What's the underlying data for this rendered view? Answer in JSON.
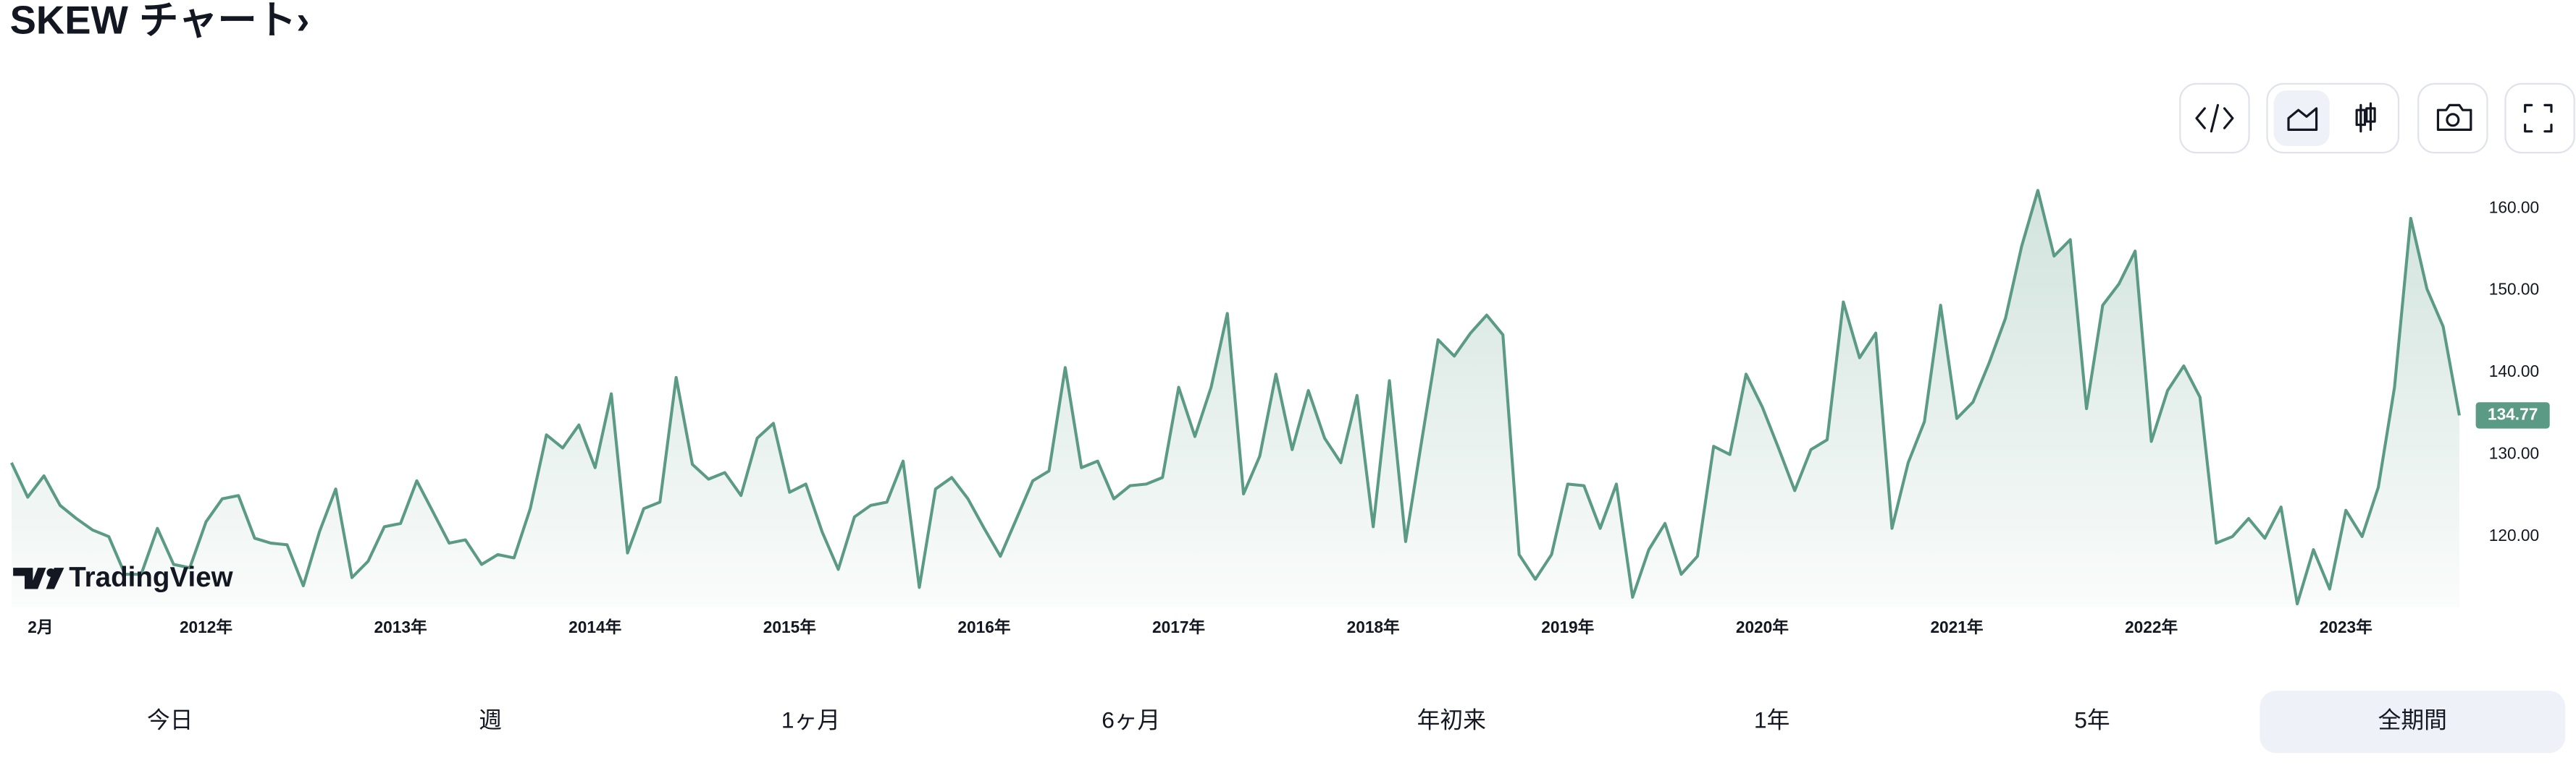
{
  "title": "SKEW チャート›",
  "logo": "TradingView",
  "range_buttons": [
    {
      "label": "今日"
    },
    {
      "label": "週"
    },
    {
      "label": "1ヶ月"
    },
    {
      "label": "6ヶ月"
    },
    {
      "label": "年初来"
    },
    {
      "label": "1年"
    },
    {
      "label": "5年"
    },
    {
      "label": "全期間",
      "active": true
    }
  ],
  "chart_data": {
    "type": "area",
    "color": "#5b9a85",
    "x": [
      "2011-01",
      "2011-02",
      "2011-03",
      "2011-04",
      "2011-05",
      "2011-06",
      "2011-07",
      "2011-08",
      "2011-09",
      "2011-10",
      "2011-11",
      "2011-12",
      "2012-01",
      "2012-02",
      "2012-03",
      "2012-04",
      "2012-05",
      "2012-06",
      "2012-07",
      "2012-08",
      "2012-09",
      "2012-10",
      "2012-11",
      "2012-12",
      "2013-01",
      "2013-02",
      "2013-03",
      "2013-04",
      "2013-05",
      "2013-06",
      "2013-07",
      "2013-08",
      "2013-09",
      "2013-10",
      "2013-11",
      "2013-12",
      "2014-01",
      "2014-02",
      "2014-03",
      "2014-04",
      "2014-05",
      "2014-06",
      "2014-07",
      "2014-08",
      "2014-09",
      "2014-10",
      "2014-11",
      "2014-12",
      "2015-01",
      "2015-02",
      "2015-03",
      "2015-04",
      "2015-05",
      "2015-06",
      "2015-07",
      "2015-08",
      "2015-09",
      "2015-10",
      "2015-11",
      "2015-12",
      "2016-01",
      "2016-02",
      "2016-03",
      "2016-04",
      "2016-05",
      "2016-06",
      "2016-07",
      "2016-08",
      "2016-09",
      "2016-10",
      "2016-11",
      "2016-12",
      "2017-01",
      "2017-02",
      "2017-03",
      "2017-04",
      "2017-05",
      "2017-06",
      "2017-07",
      "2017-08",
      "2017-09",
      "2017-10",
      "2017-11",
      "2017-12",
      "2018-01",
      "2018-02",
      "2018-03",
      "2018-04",
      "2018-05",
      "2018-06",
      "2018-07",
      "2018-08",
      "2018-09",
      "2018-10",
      "2018-11",
      "2018-12",
      "2019-01",
      "2019-02",
      "2019-03",
      "2019-04",
      "2019-05",
      "2019-06",
      "2019-07",
      "2019-08",
      "2019-09",
      "2019-10",
      "2019-11",
      "2019-12",
      "2020-01",
      "2020-02",
      "2020-03",
      "2020-04",
      "2020-05",
      "2020-06",
      "2020-07",
      "2020-08",
      "2020-09",
      "2020-10",
      "2020-11",
      "2020-12",
      "2021-01",
      "2021-02",
      "2021-03",
      "2021-04",
      "2021-05",
      "2021-06",
      "2021-07",
      "2021-08",
      "2021-09",
      "2021-10",
      "2021-11",
      "2021-12",
      "2022-01",
      "2022-02",
      "2022-03",
      "2022-04",
      "2022-05",
      "2022-06",
      "2022-07",
      "2022-08",
      "2022-09",
      "2022-10",
      "2022-11",
      "2022-12",
      "2023-01",
      "2023-02",
      "2023-03",
      "2023-04",
      "2023-05",
      "2023-06",
      "2023-07",
      "2023-08"
    ],
    "values": [
      129.0,
      124.8,
      127.4,
      123.8,
      122.2,
      120.8,
      120.0,
      115.4,
      115.4,
      121.0,
      116.6,
      116.2,
      121.8,
      124.6,
      125.0,
      119.8,
      119.2,
      119.0,
      114.0,
      120.6,
      125.8,
      115.0,
      117.0,
      121.2,
      121.6,
      126.8,
      123.0,
      119.2,
      119.6,
      116.6,
      117.8,
      117.4,
      123.4,
      132.4,
      130.8,
      133.6,
      128.4,
      137.4,
      118.0,
      123.4,
      124.2,
      139.4,
      128.8,
      127.0,
      127.8,
      125.0,
      132.0,
      133.8,
      125.4,
      126.4,
      120.6,
      116.0,
      122.4,
      123.8,
      124.2,
      129.2,
      113.8,
      125.8,
      127.2,
      124.6,
      121.0,
      117.6,
      122.2,
      126.8,
      128.0,
      140.6,
      128.4,
      129.2,
      124.6,
      126.2,
      126.4,
      127.2,
      138.2,
      132.2,
      138.2,
      147.2,
      125.2,
      129.8,
      139.8,
      130.6,
      137.8,
      132.0,
      129.0,
      137.2,
      121.2,
      139.0,
      119.4,
      131.8,
      144.0,
      142.0,
      144.8,
      147.0,
      144.6,
      117.8,
      114.8,
      117.8,
      126.4,
      126.2,
      121.0,
      126.4,
      112.6,
      118.4,
      121.6,
      115.4,
      117.6,
      131.0,
      130.0,
      139.8,
      135.8,
      130.8,
      125.6,
      130.6,
      131.8,
      148.6,
      141.8,
      144.8,
      121.0,
      129.0,
      134.0,
      148.2,
      134.4,
      136.4,
      141.2,
      146.6,
      155.4,
      162.2,
      154.2,
      156.2,
      135.6,
      148.2,
      150.8,
      154.8,
      131.6,
      137.8,
      140.8,
      137.0,
      119.2,
      120.0,
      122.2,
      119.8,
      123.6,
      111.8,
      118.4,
      113.6,
      123.2,
      120.0,
      126.0,
      138.2,
      158.8,
      150.2,
      145.6,
      134.77
    ],
    "xlim": [
      "2011-01",
      "2023-08"
    ],
    "xticks": [
      {
        "value": "2011-02",
        "label": "2月"
      },
      {
        "value": "2012-01",
        "label": "2012年"
      },
      {
        "value": "2013-01",
        "label": "2013年"
      },
      {
        "value": "2014-01",
        "label": "2014年"
      },
      {
        "value": "2015-01",
        "label": "2015年"
      },
      {
        "value": "2016-01",
        "label": "2016年"
      },
      {
        "value": "2017-01",
        "label": "2017年"
      },
      {
        "value": "2018-01",
        "label": "2018年"
      },
      {
        "value": "2019-01",
        "label": "2019年"
      },
      {
        "value": "2020-01",
        "label": "2020年"
      },
      {
        "value": "2021-01",
        "label": "2021年"
      },
      {
        "value": "2022-01",
        "label": "2022年"
      },
      {
        "value": "2023-01",
        "label": "2023年"
      }
    ],
    "ylim": [
      111.4,
      165.4
    ],
    "yticks": [
      {
        "value": 120,
        "label": "120.00"
      },
      {
        "value": 130,
        "label": "130.00"
      },
      {
        "value": 140,
        "label": "140.00"
      },
      {
        "value": 150,
        "label": "150.00"
      },
      {
        "value": 160,
        "label": "160.00"
      }
    ],
    "grid": false
  }
}
